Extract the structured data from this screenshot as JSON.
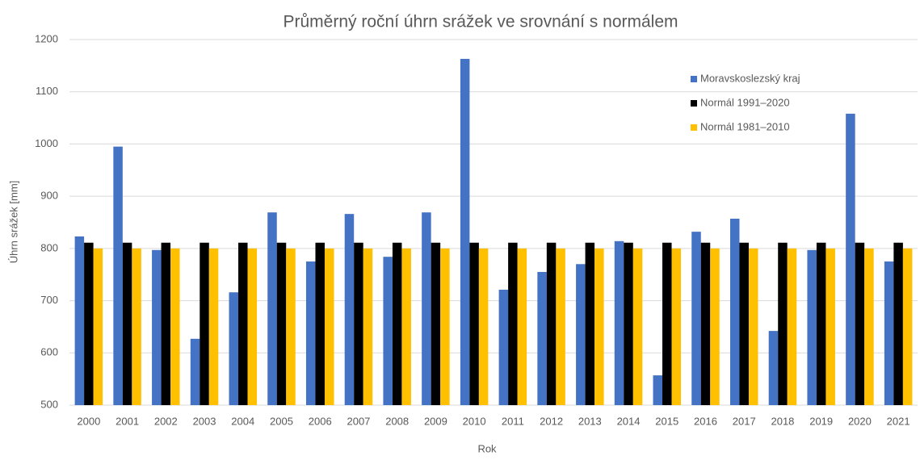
{
  "chart_data": {
    "type": "bar",
    "title": "Průměrný roční úhrn srážek ve srovnání s normálem",
    "x_label": "Rok",
    "y_label": "Úhrn srážek [mm]",
    "categories": [
      "2000",
      "2001",
      "2002",
      "2003",
      "2004",
      "2005",
      "2006",
      "2007",
      "2008",
      "2009",
      "2010",
      "2011",
      "2012",
      "2013",
      "2014",
      "2015",
      "2016",
      "2017",
      "2018",
      "2019",
      "2020",
      "2021"
    ],
    "series": [
      {
        "name": "Moravskoslezský kraj",
        "color": "#4472c4",
        "values": [
          823,
          995,
          797,
          627,
          716,
          869,
          775,
          866,
          784,
          869,
          1163,
          721,
          755,
          770,
          814,
          557,
          832,
          857,
          642,
          797,
          1058,
          775
        ]
      },
      {
        "name": "Normál 1991–2020",
        "color": "#000000",
        "values": [
          811,
          811,
          811,
          811,
          811,
          811,
          811,
          811,
          811,
          811,
          811,
          811,
          811,
          811,
          811,
          811,
          811,
          811,
          811,
          811,
          811,
          811
        ]
      },
      {
        "name": "Normál 1981–2010",
        "color": "#ffc000",
        "values": [
          800,
          800,
          800,
          800,
          800,
          800,
          800,
          800,
          800,
          800,
          800,
          800,
          800,
          800,
          800,
          800,
          800,
          800,
          800,
          800,
          800,
          800
        ]
      }
    ],
    "ylim": [
      500,
      1200
    ],
    "yticks": [
      500,
      600,
      700,
      800,
      900,
      1000,
      1100,
      1200
    ],
    "grid": true,
    "legend": "top-right"
  }
}
